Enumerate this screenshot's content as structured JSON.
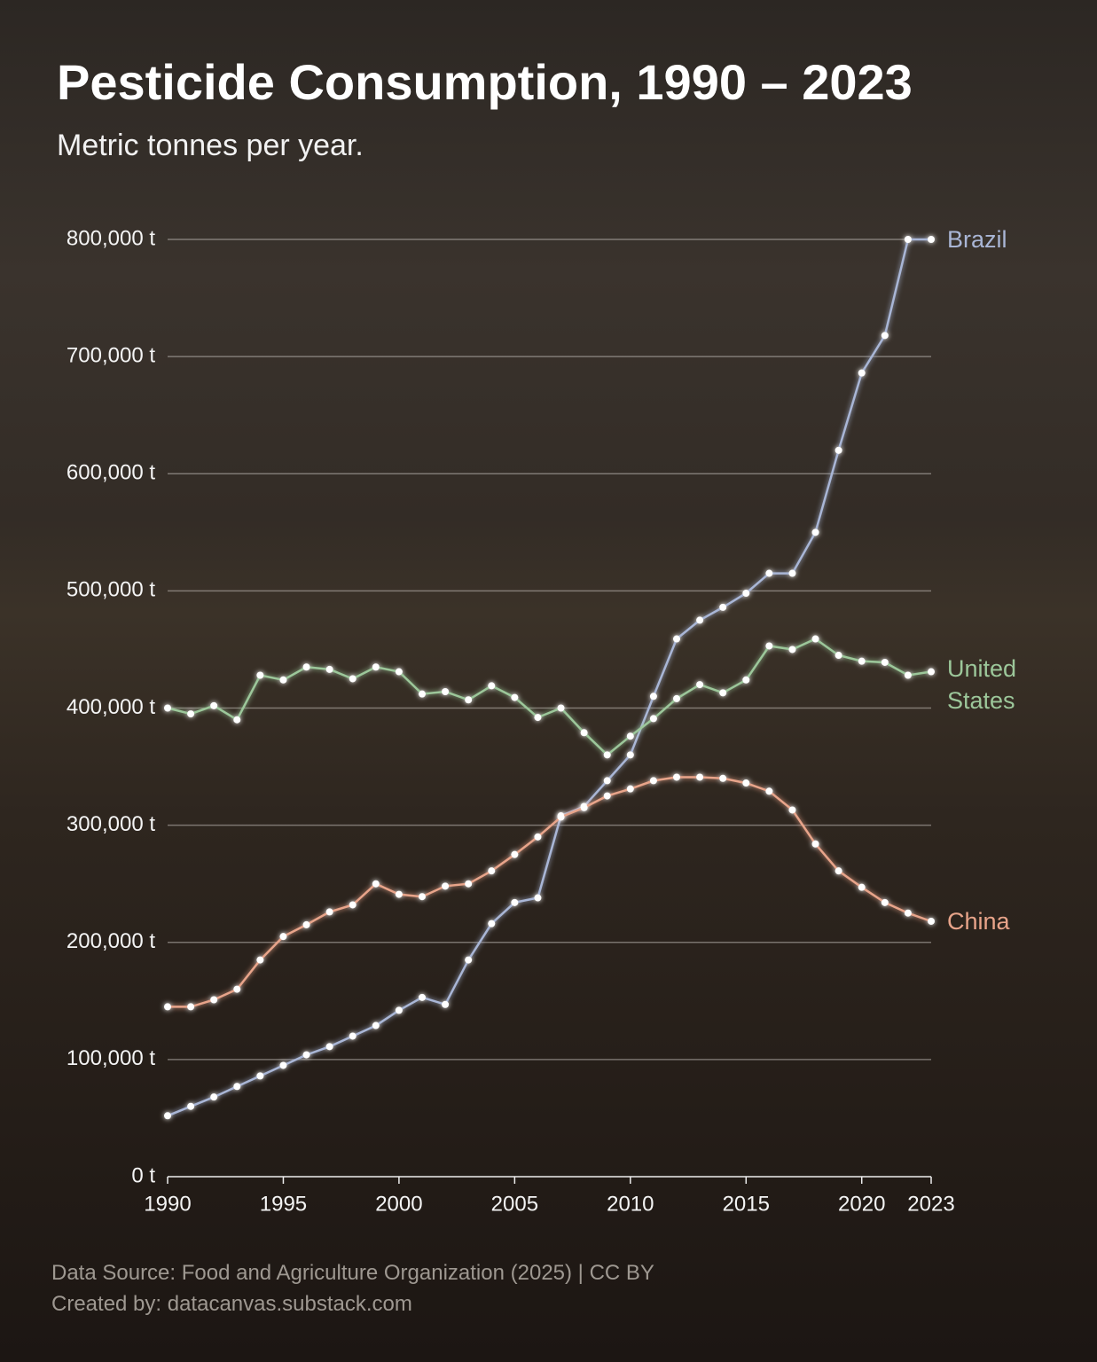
{
  "chart_data": {
    "type": "line",
    "title": "Pesticide Consumption, 1990 – 2023",
    "subtitle": "Metric tonnes per year.",
    "source": "Data Source: Food and Agriculture Organization (2025) | CC BY",
    "credit": "Created by: datacanvas.substack.com",
    "x": [
      1990,
      1991,
      1992,
      1993,
      1994,
      1995,
      1996,
      1997,
      1998,
      1999,
      2000,
      2001,
      2002,
      2003,
      2004,
      2005,
      2006,
      2007,
      2008,
      2009,
      2010,
      2011,
      2012,
      2013,
      2014,
      2015,
      2016,
      2017,
      2018,
      2019,
      2020,
      2021,
      2022,
      2023
    ],
    "xlim": [
      1990,
      2023
    ],
    "xticks": [
      1990,
      1995,
      2000,
      2005,
      2010,
      2015,
      2020,
      2023
    ],
    "ylim": [
      0,
      800000
    ],
    "yticks": [
      {
        "value": 0,
        "label": "0 t"
      },
      {
        "value": 100000,
        "label": "100,000 t"
      },
      {
        "value": 200000,
        "label": "200,000 t"
      },
      {
        "value": 300000,
        "label": "300,000 t"
      },
      {
        "value": 400000,
        "label": "400,000 t"
      },
      {
        "value": 500000,
        "label": "500,000 t"
      },
      {
        "value": 600000,
        "label": "600,000 t"
      },
      {
        "value": 700000,
        "label": "700,000 t"
      },
      {
        "value": 800000,
        "label": "800,000 t"
      }
    ],
    "grid": true,
    "series": [
      {
        "name": "Brazil",
        "color": "#a9b6d6",
        "values": [
          52000,
          60000,
          68000,
          77000,
          86000,
          95000,
          104000,
          111000,
          120000,
          129000,
          142000,
          153000,
          147000,
          185000,
          216000,
          234000,
          238000,
          308000,
          316000,
          338000,
          360000,
          410000,
          459000,
          475000,
          486000,
          498000,
          515000,
          515000,
          550000,
          620000,
          686000,
          718000,
          800000,
          800000
        ]
      },
      {
        "name": "United States",
        "color": "#9cc79a",
        "values": [
          400000,
          395000,
          402000,
          390000,
          428000,
          424000,
          435000,
          433000,
          425000,
          435000,
          431000,
          412000,
          414000,
          407000,
          419000,
          409000,
          392000,
          400000,
          379000,
          360000,
          376000,
          391000,
          408000,
          420000,
          413000,
          424000,
          453000,
          450000,
          459000,
          445000,
          440000,
          439000,
          428000,
          431000
        ]
      },
      {
        "name": "China",
        "color": "#e8a48a",
        "values": [
          145000,
          145000,
          151000,
          160000,
          185000,
          205000,
          215000,
          226000,
          232000,
          250000,
          241000,
          239000,
          248000,
          250000,
          261000,
          275000,
          290000,
          307000,
          315000,
          325000,
          331000,
          338000,
          341000,
          341000,
          340000,
          336000,
          329000,
          313000,
          284000,
          261000,
          247000,
          234000,
          225000,
          218000
        ]
      }
    ]
  }
}
